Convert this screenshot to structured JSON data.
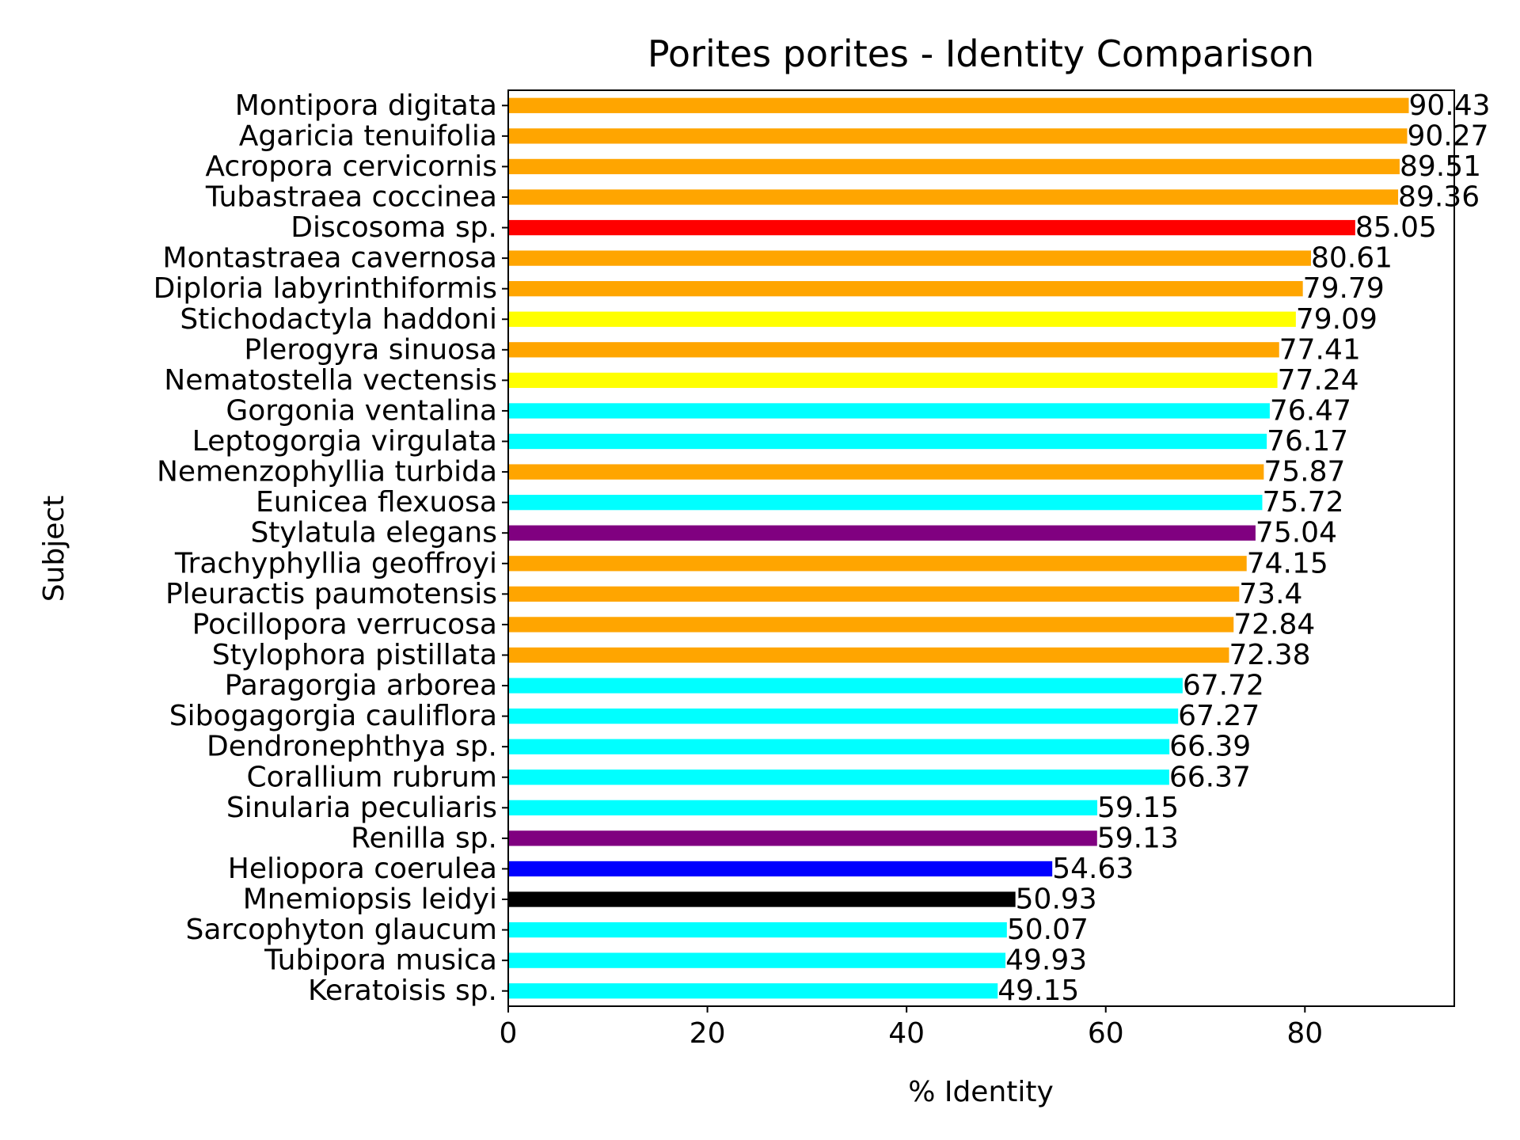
{
  "chart_data": {
    "type": "bar",
    "orientation": "horizontal",
    "title": "Porites porites - Identity Comparison",
    "xlabel": "% Identity",
    "ylabel": "Subject",
    "xlim": [
      0,
      95
    ],
    "xticks": [
      0,
      20,
      40,
      60,
      80
    ],
    "grid": false,
    "legend": "none",
    "categories": [
      "Montipora digitata",
      "Agaricia tenuifolia",
      "Acropora cervicornis",
      "Tubastraea coccinea",
      "Discosoma sp.",
      "Montastraea cavernosa",
      "Diploria labyrinthiformis",
      "Stichodactyla haddoni",
      "Plerogyra sinuosa",
      "Nematostella vectensis",
      "Gorgonia ventalina",
      "Leptogorgia virgulata",
      "Nemenzophyllia turbida",
      "Eunicea flexuosa",
      "Stylatula elegans",
      "Trachyphyllia geoffroyi",
      "Pleuractis paumotensis",
      "Pocillopora verrucosa",
      "Stylophora pistillata",
      "Paragorgia arborea",
      "Sibogagorgia cauliflora",
      "Dendronephthya sp.",
      "Corallium rubrum",
      "Sinularia peculiaris",
      "Renilla sp.",
      "Heliopora coerulea",
      "Mnemiopsis leidyi",
      "Sarcophyton glaucum",
      "Tubipora musica",
      "Keratoisis sp."
    ],
    "values": [
      90.43,
      90.27,
      89.51,
      89.36,
      85.05,
      80.61,
      79.79,
      79.09,
      77.41,
      77.24,
      76.47,
      76.17,
      75.87,
      75.72,
      75.04,
      74.15,
      73.4,
      72.84,
      72.38,
      67.72,
      67.27,
      66.39,
      66.37,
      59.15,
      59.13,
      54.63,
      50.93,
      50.07,
      49.93,
      49.15
    ],
    "value_labels": [
      "90.43",
      "90.27",
      "89.51",
      "89.36",
      "85.05",
      "80.61",
      "79.79",
      "79.09",
      "77.41",
      "77.24",
      "76.47",
      "76.17",
      "75.87",
      "75.72",
      "75.04",
      "74.15",
      "73.4",
      "72.84",
      "72.38",
      "67.72",
      "67.27",
      "66.39",
      "66.37",
      "59.15",
      "59.13",
      "54.63",
      "50.93",
      "50.07",
      "49.93",
      "49.15"
    ],
    "bar_colors": [
      "#ffa500",
      "#ffa500",
      "#ffa500",
      "#ffa500",
      "#ff0000",
      "#ffa500",
      "#ffa500",
      "#ffff00",
      "#ffa500",
      "#ffff00",
      "#00ffff",
      "#00ffff",
      "#ffa500",
      "#00ffff",
      "#800080",
      "#ffa500",
      "#ffa500",
      "#ffa500",
      "#ffa500",
      "#00ffff",
      "#00ffff",
      "#00ffff",
      "#00ffff",
      "#00ffff",
      "#800080",
      "#0000ff",
      "#000000",
      "#00ffff",
      "#00ffff",
      "#00ffff"
    ]
  }
}
